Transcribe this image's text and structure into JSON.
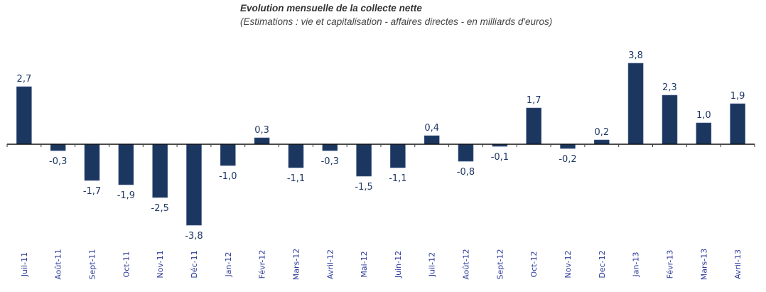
{
  "chart_data": {
    "type": "bar",
    "title": "Evolution mensuelle de la collecte nette",
    "subtitle": "(Estimations : vie et capitalisation - affaires directes - en milliards d'euros)",
    "xlabel": "",
    "ylabel": "",
    "ylim": [
      -3.8,
      3.8
    ],
    "grid": false,
    "legend": "none",
    "bar_color": "#1b375f",
    "label_color": "#1f3864",
    "tick_label_color": "#2b3a9a",
    "categories": [
      "Juil-11",
      "Août-11",
      "Sept-11",
      "Oct-11",
      "Nov-11",
      "Déc-11",
      "Jan-12",
      "Févr-12",
      "Mars-12",
      "Avril-12",
      "Mai-12",
      "Juin-12",
      "Juil-12",
      "Août-12",
      "Sept-12",
      "Oct-12",
      "Nov-12",
      "Dec-12",
      "Jan-13",
      "Févr-13",
      "Mars-13",
      "Avril-13"
    ],
    "values": [
      2.7,
      -0.3,
      -1.7,
      -1.9,
      -2.5,
      -3.8,
      -1.0,
      0.3,
      -1.1,
      -0.3,
      -1.5,
      -1.1,
      0.4,
      -0.8,
      -0.1,
      1.7,
      -0.2,
      0.2,
      3.8,
      2.3,
      1.0,
      1.9
    ],
    "data_labels": [
      "2,7",
      "-0,3",
      "-1,7",
      "-1,9",
      "-2,5",
      "-3,8",
      "-1,0",
      "0,3",
      "-1,1",
      "-0,3",
      "-1,5",
      "-1,1",
      "0,4",
      "-0,8",
      "-0,1",
      "1,7",
      "-0,2",
      "0,2",
      "3,8",
      "2,3",
      "1,0",
      "1,9"
    ]
  }
}
